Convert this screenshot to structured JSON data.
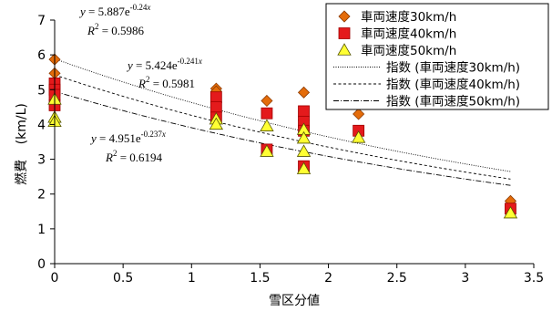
{
  "chart_data": {
    "type": "scatter",
    "xlabel": "雪区分値",
    "ylabel": "燃費 (km/L)",
    "ylabel_main": "燃費",
    "ylabel_unit": "(km/L)",
    "xlim": [
      0,
      3.5
    ],
    "ylim": [
      0,
      7
    ],
    "xticks": [
      0,
      0.5,
      1,
      1.5,
      2,
      2.5,
      3,
      3.5
    ],
    "xtick_labels": [
      "0",
      "0.5",
      "1",
      "1.5",
      "2",
      "2.5",
      "3",
      "3.5"
    ],
    "yticks": [
      0,
      1,
      2,
      3,
      4,
      5,
      6,
      7
    ],
    "ytick_labels": [
      "0",
      "1",
      "2",
      "3",
      "4",
      "5",
      "6",
      "7"
    ],
    "grid": "none",
    "legend_position": "top-right",
    "series": [
      {
        "name": "車両速度30km/h",
        "marker": "diamond",
        "color": "#E46C0A",
        "stroke": "#8B3A00",
        "x": [
          0,
          0,
          0,
          1.18,
          1.18,
          1.55,
          1.82,
          1.82,
          2.22,
          3.33
        ],
        "y": [
          5.87,
          5.47,
          4.85,
          5.03,
          4.95,
          4.68,
          4.92,
          4.12,
          4.3,
          1.8
        ]
      },
      {
        "name": "車両速度40km/h",
        "marker": "square",
        "color": "#E41A1C",
        "stroke": "#A00000",
        "x": [
          0,
          0,
          0,
          0,
          1.18,
          1.18,
          1.18,
          1.55,
          1.55,
          1.82,
          1.82,
          1.82,
          1.82,
          2.22,
          3.33
        ],
        "y": [
          5.18,
          5.0,
          4.85,
          4.55,
          4.78,
          4.5,
          4.2,
          4.32,
          3.28,
          4.38,
          4.08,
          3.82,
          2.8,
          3.82,
          1.58
        ]
      },
      {
        "name": "車両速度50km/h",
        "marker": "triangle",
        "color": "#FFFF33",
        "stroke": "#555500",
        "x": [
          0,
          0,
          0,
          1.18,
          1.18,
          1.55,
          1.55,
          1.82,
          1.82,
          1.82,
          1.82,
          2.22,
          3.33
        ],
        "y": [
          4.72,
          4.2,
          4.08,
          4.15,
          4.0,
          3.95,
          3.22,
          3.85,
          3.6,
          3.22,
          2.72,
          3.62,
          1.45
        ]
      }
    ],
    "trendlines": [
      {
        "name": "指数 (車両速度30km/h)",
        "type": "exponential",
        "a": 5.887,
        "b": -0.24,
        "dash": "1,1.5"
      },
      {
        "name": "指数 (車両速度40km/h)",
        "type": "exponential",
        "a": 5.424,
        "b": -0.241,
        "dash": "3,2.5"
      },
      {
        "name": "指数 (車両速度50km/h)",
        "type": "exponential",
        "a": 4.951,
        "b": -0.237,
        "dash": "6,2,1,2"
      }
    ],
    "annotations": [
      {
        "coef": "5.887e",
        "exp": "-0.24",
        "r2": "0.5986"
      },
      {
        "coef": "5.424e",
        "exp": "-0.241",
        "r2": "0.5981"
      },
      {
        "coef": "4.951e",
        "exp": "-0.237",
        "r2": "0.6194"
      }
    ]
  }
}
